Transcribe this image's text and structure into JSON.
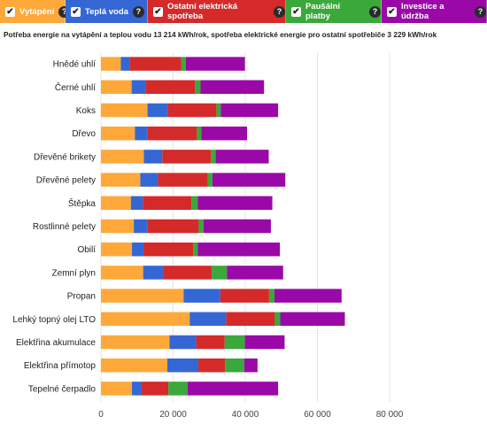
{
  "legend": [
    {
      "label": "Vytápění",
      "color": "#ffa83a",
      "help": "?"
    },
    {
      "label": "Teplá voda",
      "color": "#3567d4",
      "help": "?"
    },
    {
      "label": "Ostatní elektrická spotřeba",
      "color": "#d42a2a",
      "help": "?"
    },
    {
      "label": "Paušální platby",
      "color": "#3aa83a",
      "help": "?"
    },
    {
      "label": "Investice a údržba",
      "color": "#9a09a8",
      "help": "?"
    }
  ],
  "subtitle": "Potřeba energie na vytápění a teplou vodu 13 214 kWh/rok, spotřeba elektrické energie pro ostatní spotřebiče 3 229 kWh/rok",
  "chart_data": {
    "type": "bar",
    "orientation": "horizontal",
    "stacked": true,
    "categories": [
      "Hnědé uhlí",
      "Černé uhlí",
      "Koks",
      "Dřevo",
      "Dřevěné brikety",
      "Dřevěné pelety",
      "Štěpka",
      "Rostlinné pelety",
      "Obilí",
      "Zemní plyn",
      "Propan",
      "Lehký topný olej LTO",
      "Elektřina akumulace",
      "Elektřina přímotop",
      "Tepelné čerpadlo"
    ],
    "series": [
      {
        "name": "Vytápění",
        "color": "#ffa83a",
        "values": [
          5500,
          8500,
          12900,
          9400,
          11900,
          10900,
          8300,
          9100,
          8600,
          11700,
          22900,
          24600,
          19000,
          18400,
          8600
        ]
      },
      {
        "name": "Teplá voda",
        "color": "#3567d4",
        "values": [
          2500,
          3800,
          5600,
          3400,
          5100,
          4900,
          3300,
          3700,
          3200,
          5500,
          10200,
          10100,
          7400,
          8600,
          2700
        ]
      },
      {
        "name": "Ostatní elektrická spotřeba",
        "color": "#d42a2a",
        "values": [
          14300,
          13800,
          13500,
          13800,
          13500,
          13800,
          13500,
          14300,
          13800,
          13500,
          13500,
          13500,
          7900,
          7400,
          7400
        ]
      },
      {
        "name": "Paušální platby",
        "color": "#3aa83a",
        "values": [
          1200,
          1500,
          1200,
          1200,
          1300,
          1300,
          1700,
          1300,
          1200,
          4200,
          1500,
          1500,
          5600,
          5300,
          5300
        ]
      },
      {
        "name": "Investice a údržba",
        "color": "#9a09a8",
        "values": [
          16400,
          17600,
          15900,
          12700,
          14700,
          20200,
          20700,
          18700,
          22800,
          15600,
          18600,
          17900,
          11000,
          3700,
          25100
        ]
      }
    ],
    "xlim": [
      0,
      80000
    ],
    "xticks": [
      0,
      20000,
      40000,
      60000,
      80000
    ],
    "xtick_labels": [
      "0",
      "20 000",
      "40 000",
      "60 000",
      "80 000"
    ],
    "grid": "vertical"
  }
}
